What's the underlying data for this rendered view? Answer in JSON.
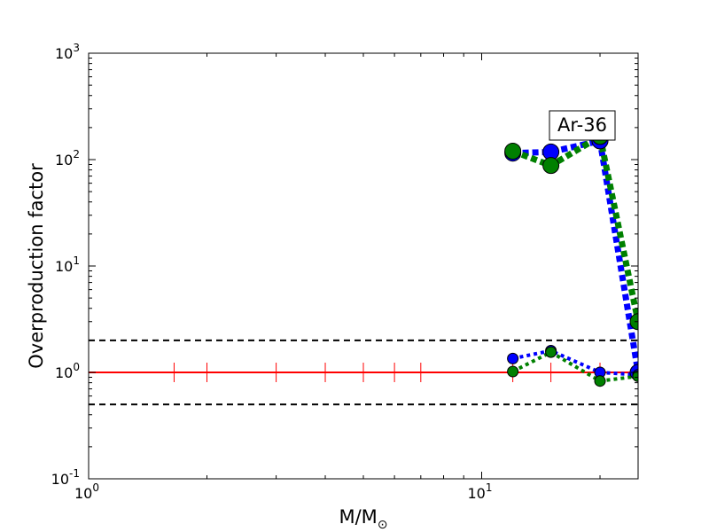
{
  "chart_data": {
    "type": "line",
    "xscale": "log",
    "yscale": "log",
    "xlim": [
      1,
      25
    ],
    "ylim": [
      0.1,
      1000
    ],
    "xlabel": "M/M",
    "xlabel_sub": "⊙",
    "ylabel": "Overproduction factor",
    "annotation": "Ar-36",
    "x_ticks": [
      {
        "base": "10",
        "exp": "0",
        "value": 1
      },
      {
        "base": "10",
        "exp": "1",
        "value": 10
      }
    ],
    "y_ticks": [
      {
        "base": "10",
        "exp": "-1",
        "value": 0.1
      },
      {
        "base": "10",
        "exp": "0",
        "value": 1
      },
      {
        "base": "10",
        "exp": "1",
        "value": 10
      },
      {
        "base": "10",
        "exp": "2",
        "value": 100
      },
      {
        "base": "10",
        "exp": "3",
        "value": 1000
      }
    ],
    "reference_lines": [
      {
        "y": 2,
        "style": "dashed",
        "color": "#000000"
      },
      {
        "y": 1,
        "style": "dashed",
        "color": "#000000"
      },
      {
        "y": 0.5,
        "style": "dashed",
        "color": "#000000"
      },
      {
        "y": 1,
        "style": "solid",
        "color": "#ff0000"
      }
    ],
    "ref_markers_x": [
      1.65,
      2,
      3,
      4,
      5,
      6,
      7,
      12,
      15,
      20,
      25
    ],
    "series": [
      {
        "color": "#0000ff",
        "style": "dotted-thick",
        "marker_size": "large",
        "x": [
          12,
          15,
          20,
          25
        ],
        "y": [
          115,
          118,
          150,
          1.0
        ]
      },
      {
        "color": "#008000",
        "style": "dotted-thick",
        "marker_size": "large",
        "x": [
          12,
          15,
          20,
          25
        ],
        "y": [
          120,
          88,
          165,
          3.0
        ]
      },
      {
        "color": "#0000ff",
        "style": "dotted",
        "marker_size": "small",
        "x": [
          12,
          15,
          20,
          25
        ],
        "y": [
          1.35,
          1.6,
          1.0,
          0.95
        ]
      },
      {
        "color": "#008000",
        "style": "dotted",
        "marker_size": "small",
        "x": [
          12,
          15,
          20,
          25
        ],
        "y": [
          1.02,
          1.55,
          0.83,
          0.92
        ]
      }
    ]
  }
}
